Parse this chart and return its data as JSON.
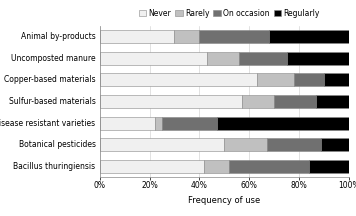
{
  "categories": [
    "Animal by-products",
    "Uncomposted manure",
    "Copper-based materials",
    "Sulfur-based materials",
    "Disease resistant varieties",
    "Botanical pesticides",
    "Bacillus thuringiensis"
  ],
  "series": {
    "Never": [
      30,
      43,
      63,
      57,
      22,
      50,
      42
    ],
    "Rarely": [
      10,
      13,
      15,
      13,
      3,
      17,
      10
    ],
    "On occasion": [
      28,
      19,
      12,
      17,
      22,
      22,
      32
    ],
    "Regularly": [
      32,
      25,
      10,
      13,
      53,
      11,
      16
    ]
  },
  "colors": {
    "Never": "#f0f0f0",
    "Rarely": "#c0c0c0",
    "On occasion": "#707070",
    "Regularly": "#000000"
  },
  "legend_order": [
    "Never",
    "Rarely",
    "On occasion",
    "Regularly"
  ],
  "xlabel": "Frequency of use",
  "xticks": [
    0,
    20,
    40,
    60,
    80,
    100
  ],
  "xtick_labels": [
    "0%",
    "20%",
    "40%",
    "60%",
    "80%",
    "100%"
  ],
  "bar_height": 0.6,
  "edge_color": "#888888",
  "edge_linewidth": 0.4,
  "label_fontsize": 5.5,
  "tick_fontsize": 5.5,
  "legend_fontsize": 5.5,
  "xlabel_fontsize": 6.0
}
